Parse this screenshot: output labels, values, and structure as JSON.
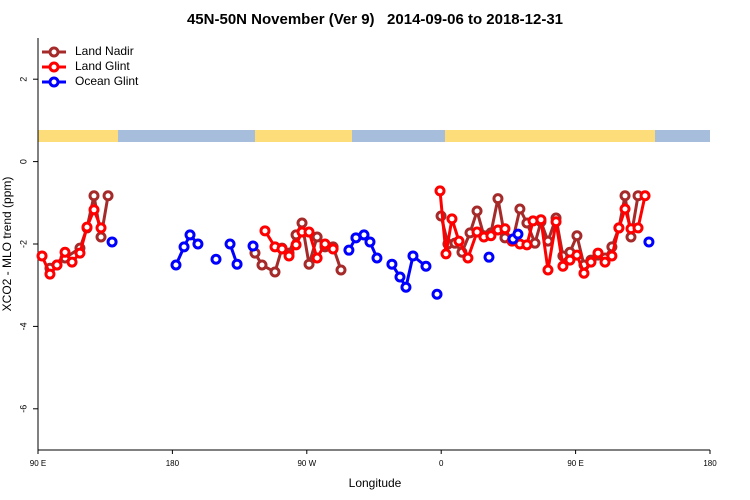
{
  "chart_data": {
    "type": "line",
    "title": "45N-50N November (Ver 9)   2014-09-06 to 2018-12-31",
    "x_label": "Longitude",
    "y_label": "XCO2 - MLO trend (ppm)",
    "xlim": [
      90,
      540
    ],
    "xticks": [
      {
        "value": 90,
        "label": "90 E"
      },
      180,
      {
        "value": 270,
        "label": "90 W"
      },
      {
        "value": 360,
        "label": "0"
      },
      {
        "value": 450,
        "label": "90 E"
      },
      {
        "value": 540,
        "label": "180"
      }
    ],
    "ylim": [
      -7,
      3
    ],
    "yticks": [
      -6,
      -4,
      -2,
      0,
      2
    ],
    "legend": "top-left",
    "series": [
      {
        "name": "Land Nadir",
        "color": "#a52a2a",
        "x": [
          98.0,
          102.7,
          108.1,
          118.1,
          122.8,
          127.5,
          132.2,
          136.9,
          null,
          235.3,
          240.0,
          248.7,
          253.4,
          258.1,
          262.8,
          266.8,
          271.5,
          276.9,
          282.2,
          287.6,
          292.9,
          null,
          359.9,
          364.5,
          369.2,
          373.9,
          379.3,
          384.0,
          388.6,
          393.3,
          398.0,
          402.7,
          408.1,
          412.7,
          417.4,
          422.8,
          426.8,
          431.5,
          436.9,
          441.5,
          446.2,
          450.9,
          455.6,
          460.3,
          465.0,
          469.7,
          474.3,
          479.0,
          483.1,
          487.1,
          491.8
        ],
        "values": [
          -2.59,
          -2.51,
          -2.34,
          -2.1,
          -1.61,
          -0.83,
          -1.83,
          -0.83,
          null,
          -2.22,
          -2.51,
          -2.68,
          -2.1,
          -2.22,
          -1.78,
          -1.49,
          -2.49,
          -1.83,
          -2.07,
          -2.07,
          -2.63,
          null,
          -1.32,
          -2.0,
          -1.98,
          -2.2,
          -1.73,
          -1.2,
          -1.8,
          -1.73,
          -0.9,
          -1.85,
          -1.88,
          -1.15,
          -1.49,
          -1.98,
          -1.46,
          -1.93,
          -1.37,
          -2.29,
          -2.2,
          -1.8,
          -2.51,
          -2.39,
          -2.27,
          -2.34,
          -2.07,
          -1.61,
          -0.83,
          -1.83,
          -0.83
        ]
      },
      {
        "name": "Land Glint",
        "color": "#ff0000",
        "x": [
          92.7,
          98.0,
          102.7,
          108.1,
          112.8,
          118.1,
          122.8,
          127.5,
          132.2,
          null,
          242.0,
          248.7,
          253.4,
          258.1,
          262.8,
          266.8,
          271.5,
          276.9,
          282.2,
          287.6,
          null,
          359.2,
          363.2,
          367.2,
          371.9,
          377.9,
          384.0,
          388.6,
          393.3,
          398.0,
          402.7,
          407.4,
          412.7,
          417.4,
          421.5,
          426.8,
          431.5,
          436.9,
          441.5,
          446.2,
          450.9,
          455.6,
          460.3,
          465.0,
          469.7,
          474.3,
          479.0,
          483.1,
          487.1,
          491.8,
          496.5
        ],
        "values": [
          -2.29,
          -2.73,
          -2.51,
          -2.2,
          -2.44,
          -2.22,
          -1.59,
          -1.17,
          -1.61,
          null,
          -1.68,
          -2.07,
          -2.12,
          -2.29,
          -2.02,
          -1.71,
          -1.71,
          -2.34,
          -2.0,
          -2.12,
          null,
          -0.71,
          -2.24,
          -1.39,
          -1.93,
          -2.34,
          -1.71,
          -1.83,
          -1.8,
          -1.66,
          -1.63,
          -1.93,
          -2.0,
          -2.02,
          -1.44,
          -1.41,
          -2.63,
          -1.46,
          -2.54,
          -2.39,
          -2.27,
          -2.71,
          -2.44,
          -2.22,
          -2.44,
          -2.29,
          -1.61,
          -1.15,
          -1.63,
          -1.61,
          -0.83
        ]
      },
      {
        "name": "Ocean Glint",
        "color": "#0000ff",
        "x": [
          139.6,
          null,
          182.4,
          187.8,
          191.8,
          197.1,
          null,
          209.2,
          null,
          218.6,
          223.3,
          null,
          234.0,
          null,
          298.2,
          302.9,
          308.3,
          312.3,
          317.0,
          null,
          327.0,
          332.4,
          336.4,
          341.1,
          349.8,
          null,
          357.2,
          null,
          392.0,
          null,
          408.1,
          411.4,
          null,
          499.1
        ],
        "values": [
          -1.95,
          null,
          -2.51,
          -2.07,
          -1.78,
          -2.0,
          null,
          -2.37,
          null,
          -2.0,
          -2.49,
          null,
          -2.05,
          null,
          -2.15,
          -1.85,
          -1.78,
          -1.95,
          -2.34,
          null,
          -2.49,
          -2.8,
          -3.05,
          -2.29,
          -2.54,
          null,
          -3.22,
          null,
          -2.32,
          null,
          -1.88,
          -1.76,
          null,
          -1.95
        ]
      }
    ]
  }
}
